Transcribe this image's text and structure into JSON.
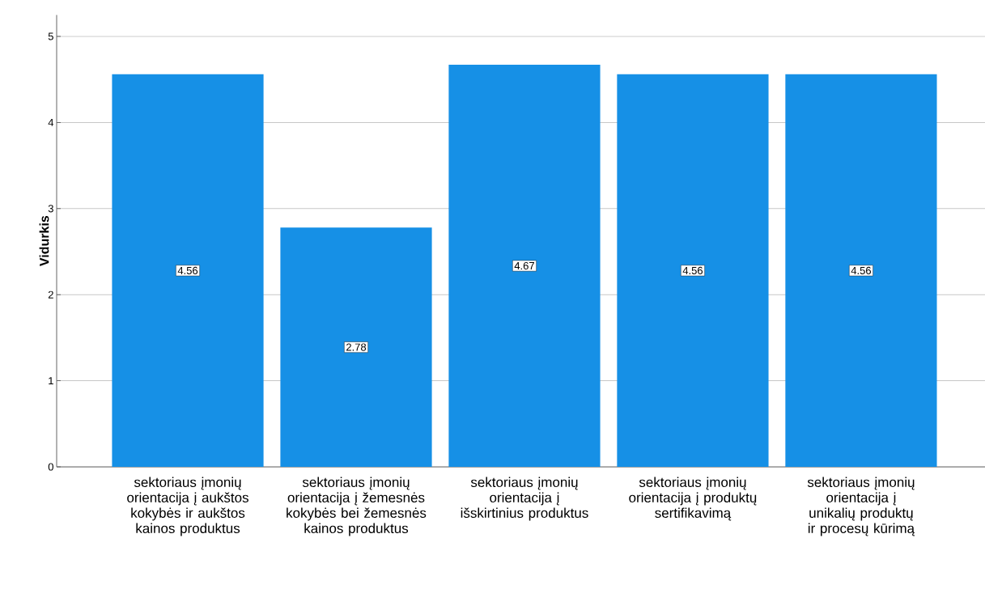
{
  "chart_data": {
    "type": "bar",
    "ylabel": "Vidurkis",
    "categories": [
      "sektoriaus įmonių orientacija į aukštos kokybės ir aukštos kainos produktus",
      "sektoriaus įmonių orientacija į žemesnės kokybės bei žemesnės kainos produktus",
      "sektoriaus įmonių orientacija į išskirtinius produktus",
      "sektoriaus įmonių orientacija į produktų sertifikavimą",
      "sektoriaus įmonių orientacija į unikalių produktų ir procesų kūrimą"
    ],
    "values": [
      4.56,
      2.78,
      4.67,
      4.56,
      4.56
    ],
    "color": "#1690e6",
    "data_labels": true,
    "grid": "y",
    "ylim": [
      0,
      5.25
    ],
    "yticks": [
      0,
      1,
      2,
      3,
      4,
      5
    ]
  }
}
